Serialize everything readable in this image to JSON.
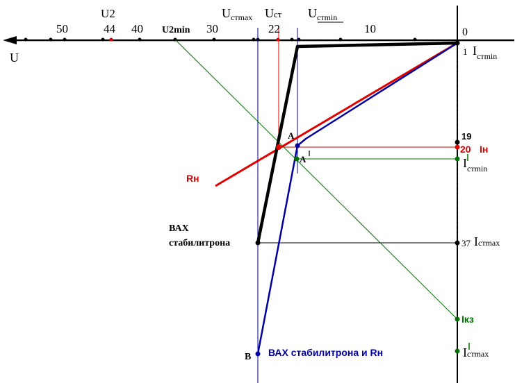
{
  "labels": {
    "u_axis": "U",
    "origin": "0",
    "u2": "U2",
    "u2_value": "44",
    "u2min": "U2min",
    "tick_50": "50",
    "tick_40": "40",
    "tick_30": "30",
    "tick_22": "22",
    "tick_10": "10",
    "ust_max_main": "U",
    "ust_max_sub": "стmax",
    "ust_main": "U",
    "ust_sub": "ст",
    "ust_min_main": "U",
    "ust_min_sub": "стmin",
    "i_1": "1",
    "i_stmin_main": "I",
    "i_stmin_sub": "стmin",
    "i_19": "19",
    "i_20": "20",
    "i_n": "Iн",
    "i_stmin2_main": "I",
    "i_stmin2_sub": "стmin",
    "i_37": "37",
    "i_stmax_main": "I",
    "i_stmax_sub": "стmax",
    "i_kz": "Iкз",
    "i_stmax2_main": "I",
    "i_stmax2_sub": "стmax",
    "point_a": "A",
    "point_a2": "A",
    "point_b": "B",
    "rn": "Rн",
    "vax_line1": "ВАХ",
    "vax_line2": "стабилитрона",
    "vax_combined": "ВАХ стабилитрона и Rн"
  },
  "colors": {
    "axis": "#000000",
    "zener_curve": "#000000",
    "combined_curve": "#0000a0",
    "load_line": "#e00000",
    "source_line": "#007000",
    "marker_red": "#e00000",
    "marker_green": "#007000"
  }
}
